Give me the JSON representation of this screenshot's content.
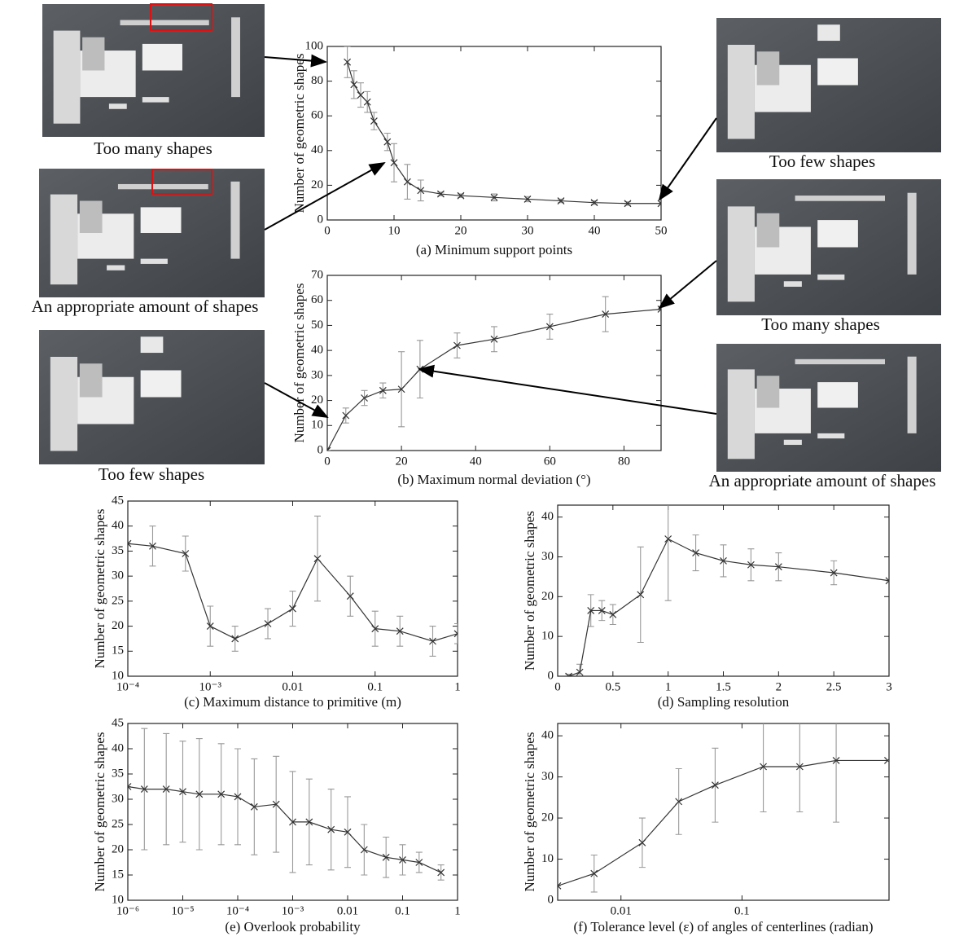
{
  "panels": [
    {
      "caption": "Too many shapes"
    },
    {
      "caption": "An appropriate amount of shapes"
    },
    {
      "caption": "Too few shapes"
    },
    {
      "caption": "Too few shapes"
    },
    {
      "caption": "Too many shapes"
    },
    {
      "caption": "An appropriate amount of shapes"
    }
  ],
  "chart_data": [
    {
      "type": "line",
      "xlabel": "(a) Minimum support points",
      "ylabel": "Number of geometric shapes",
      "color": "#333333",
      "x": [
        3,
        4,
        5,
        6,
        7,
        9,
        10,
        12,
        14,
        17,
        20,
        25,
        30,
        35,
        40,
        45,
        50
      ],
      "values": [
        91,
        78,
        72,
        68,
        57,
        45,
        33,
        22,
        17,
        15,
        14,
        13,
        12,
        11,
        10,
        9.5,
        9.5
      ],
      "errors": [
        9,
        8,
        7,
        6,
        5,
        5,
        11,
        10,
        6,
        1,
        1,
        2,
        1.5,
        1,
        1,
        1,
        0
      ],
      "xlim": [
        0,
        50
      ],
      "ylim": [
        0,
        100
      ],
      "xticks": [
        0,
        10,
        20,
        30,
        40,
        50
      ],
      "yticks": [
        0,
        20,
        40,
        60,
        80,
        100
      ]
    },
    {
      "type": "line",
      "xlabel": "(b) Maximum normal deviation (°)",
      "ylabel": "Number of geometric shapes",
      "color": "#333333",
      "x": [
        0,
        5,
        10,
        15,
        20,
        25,
        35,
        45,
        60,
        75,
        90
      ],
      "values": [
        0,
        14,
        21,
        24,
        24.5,
        32.5,
        42,
        44.5,
        49.5,
        54.5,
        56.5
      ],
      "errors": [
        0,
        3,
        3,
        3,
        15,
        11.5,
        5,
        5,
        5,
        7,
        0
      ],
      "xlim": [
        0,
        90
      ],
      "ylim": [
        0,
        70
      ],
      "xticks": [
        0,
        20,
        40,
        60,
        80
      ],
      "yticks": [
        0,
        10,
        20,
        30,
        40,
        50,
        60,
        70
      ]
    },
    {
      "type": "line",
      "xlabel": "(c) Maximum distance to primitive (m)",
      "ylabel": "Number of geometric shapes",
      "color": "#333333",
      "xscale": "log",
      "x": [
        0.0001,
        0.0002,
        0.0005,
        0.001,
        0.002,
        0.005,
        0.01,
        0.02,
        0.05,
        0.1,
        0.2,
        0.5,
        1
      ],
      "values": [
        36.5,
        36,
        34.5,
        20,
        17.5,
        20.5,
        23.5,
        33.5,
        26,
        19.5,
        19,
        17,
        18.5
      ],
      "errors": [
        0,
        4,
        3.5,
        4,
        2.5,
        3,
        3.5,
        8.5,
        4,
        3.5,
        3,
        3,
        2
      ],
      "xlim": [
        0.0001,
        1
      ],
      "ylim": [
        10,
        45
      ],
      "xticks": [
        {
          "value": 0.0001,
          "label": "10⁻⁴"
        },
        {
          "value": 0.001,
          "label": "10⁻³"
        },
        0.01,
        0.1,
        1
      ],
      "yticks": [
        10,
        15,
        20,
        25,
        30,
        35,
        40,
        45
      ]
    },
    {
      "type": "line",
      "xlabel": "(d) Sampling resolution",
      "ylabel": "Number of geometric shapes",
      "color": "#333333",
      "x": [
        0.1,
        0.2,
        0.3,
        0.4,
        0.5,
        0.75,
        1,
        1.25,
        1.5,
        1.75,
        2,
        2.5,
        3
      ],
      "values": [
        0,
        1,
        16.5,
        16.5,
        15.5,
        20.5,
        34.5,
        31,
        29,
        28,
        27.5,
        26,
        24
      ],
      "errors": [
        0.5,
        2,
        4,
        2.5,
        2.5,
        12,
        15.5,
        4.5,
        4,
        4,
        3.5,
        3,
        0
      ],
      "xlim": [
        0,
        3
      ],
      "ylim": [
        0,
        43
      ],
      "xticks": [
        0,
        0.5,
        1,
        1.5,
        2,
        2.5,
        3
      ],
      "yticks": [
        0,
        10,
        20,
        30,
        40
      ]
    },
    {
      "type": "line",
      "xlabel": "(e) Overlook probability",
      "ylabel": "Number of geometric shapes",
      "color": "#333333",
      "xscale": "log",
      "x": [
        1e-06,
        2e-06,
        5e-06,
        1e-05,
        2e-05,
        5e-05,
        0.0001,
        0.0002,
        0.0005,
        0.001,
        0.002,
        0.005,
        0.01,
        0.02,
        0.05,
        0.1,
        0.2,
        0.5
      ],
      "values": [
        32.5,
        32,
        32,
        31.5,
        31,
        31,
        30.5,
        28.5,
        29,
        25.5,
        25.5,
        24,
        23.5,
        20,
        18.5,
        18,
        17.5,
        15.5
      ],
      "errors": [
        0,
        12,
        11,
        10,
        11,
        10,
        9.5,
        9.5,
        9.5,
        10,
        8.5,
        8,
        7,
        5,
        4,
        3,
        2,
        1.5
      ],
      "xlim": [
        1e-06,
        1
      ],
      "ylim": [
        10,
        45
      ],
      "xticks": [
        {
          "value": 1e-06,
          "label": "10⁻⁶"
        },
        {
          "value": 1e-05,
          "label": "10⁻⁵"
        },
        {
          "value": 0.0001,
          "label": "10⁻⁴"
        },
        {
          "value": 0.001,
          "label": "10⁻³"
        },
        0.01,
        0.1,
        1
      ],
      "yticks": [
        10,
        15,
        20,
        25,
        30,
        35,
        40,
        45
      ]
    },
    {
      "type": "line",
      "xlabel": "(f) Tolerance level (ε) of angles of centerlines (radian)",
      "ylabel": "Number of geometric shapes",
      "color": "#333333",
      "xscale": "log",
      "x": [
        0.003,
        0.006,
        0.015,
        0.03,
        0.06,
        0.15,
        0.3,
        0.6,
        1.6
      ],
      "values": [
        3.5,
        6.5,
        14,
        24,
        28,
        32.5,
        32.5,
        34,
        34
      ],
      "errors": [
        0,
        4.5,
        6,
        8,
        9,
        11,
        11,
        15,
        0
      ],
      "xlim": [
        0.003,
        1.64
      ],
      "ylim": [
        0,
        43
      ],
      "xticks": [
        0.01,
        0.1
      ],
      "yticks": [
        0,
        10,
        20,
        30,
        40
      ]
    }
  ]
}
